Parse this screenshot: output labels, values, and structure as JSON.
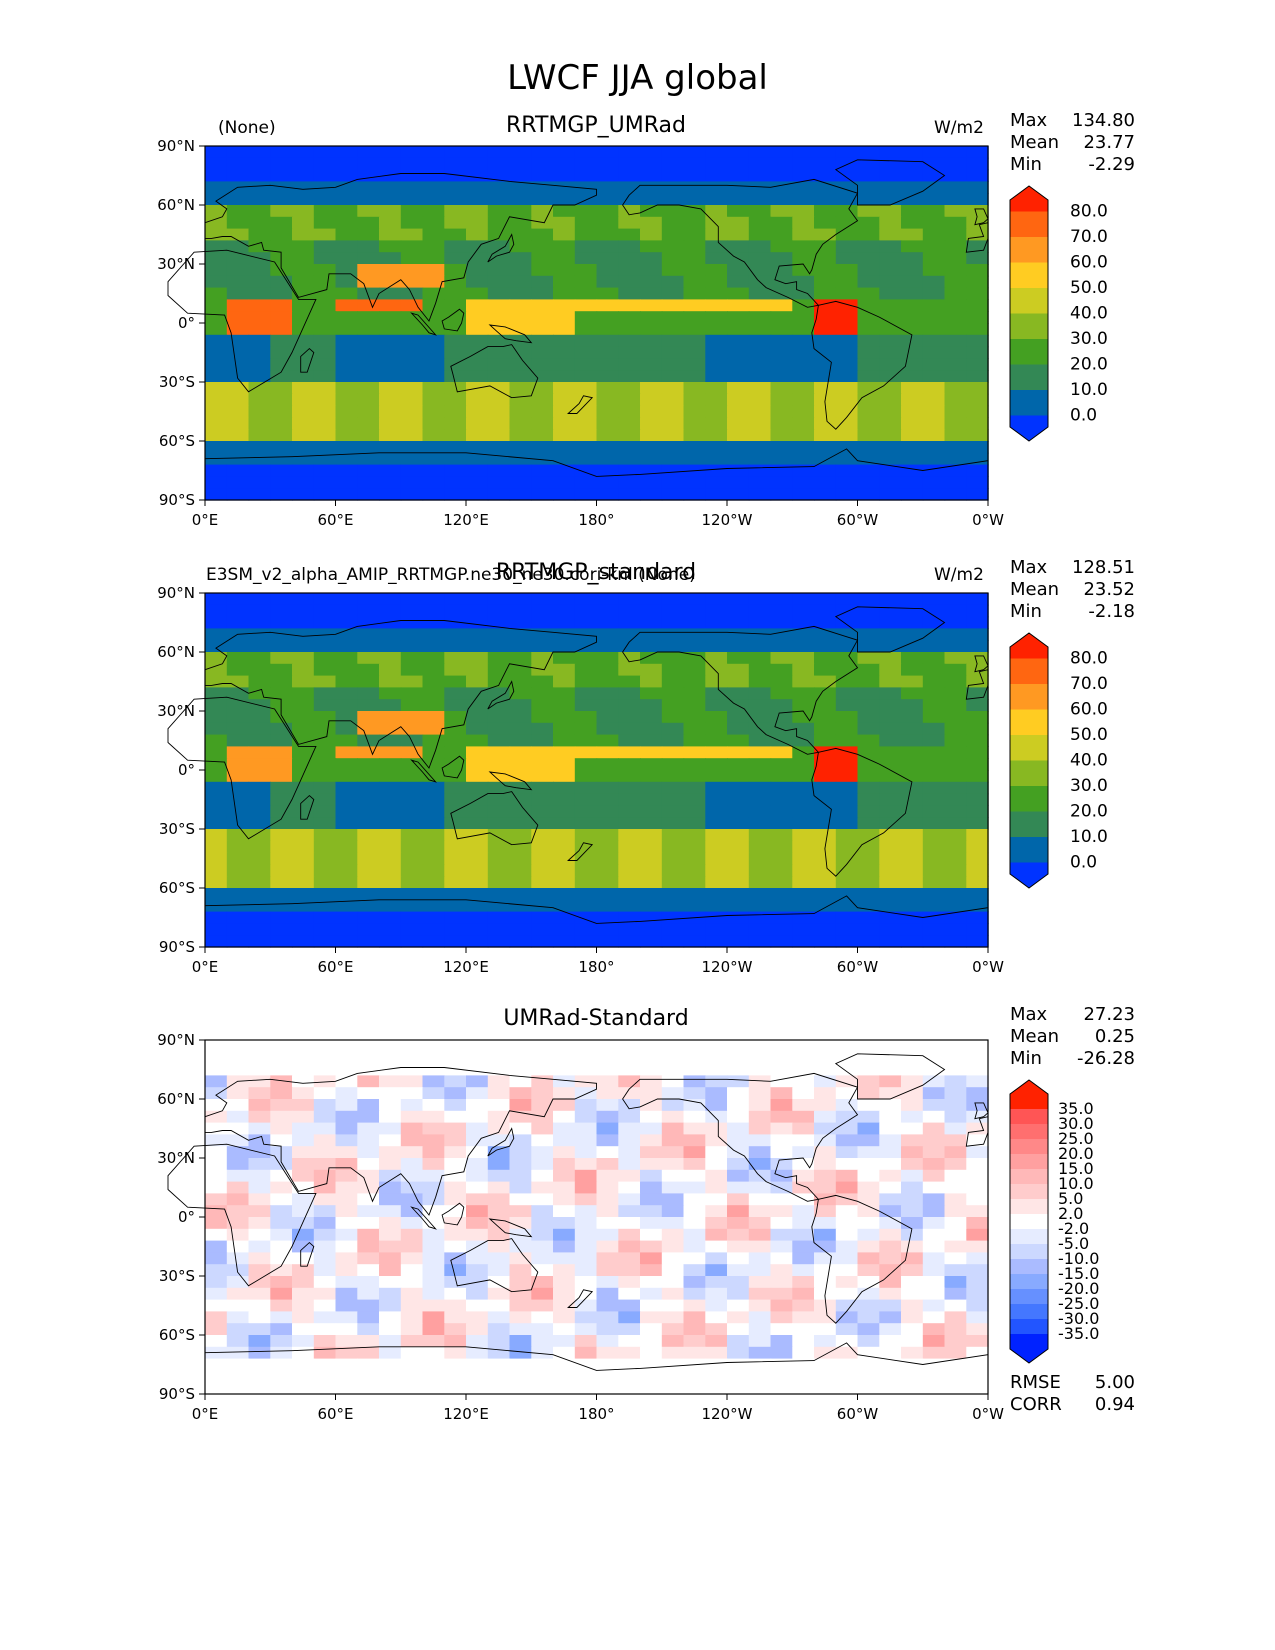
{
  "figure": {
    "title": "LWCF JJA global"
  },
  "panels": [
    {
      "title": "RRTMGP_UMRad",
      "left_label": "(None)",
      "units": "W/m2",
      "stats": {
        "max_label": "Max",
        "max": "134.80",
        "mean_label": "Mean",
        "mean": "23.77",
        "min_label": "Min",
        "min": "-2.29"
      },
      "colorbar": [
        "80.0",
        "70.0",
        "60.0",
        "50.0",
        "40.0",
        "30.0",
        "20.0",
        "10.0",
        "0.0"
      ]
    },
    {
      "title": "RRTMGP_standard",
      "left_label": "E3SM_v2_alpha_AMIP_RRTMGP.ne30_ne30.cori-knl (None)",
      "units": "W/m2",
      "stats": {
        "max_label": "Max",
        "max": "128.51",
        "mean_label": "Mean",
        "mean": "23.52",
        "min_label": "Min",
        "min": "-2.18"
      },
      "colorbar": [
        "80.0",
        "70.0",
        "60.0",
        "50.0",
        "40.0",
        "30.0",
        "20.0",
        "10.0",
        "0.0"
      ]
    },
    {
      "title": "UMRad-Standard",
      "left_label": "",
      "units": "",
      "stats": {
        "max_label": "Max",
        "max": "27.23",
        "mean_label": "Mean",
        "mean": "0.25",
        "min_label": "Min",
        "min": "-26.28"
      },
      "colorbar": [
        "35.0",
        "30.0",
        "25.0",
        "20.0",
        "15.0",
        "10.0",
        "5.0",
        "2.0",
        "-2.0",
        "-5.0",
        "-10.0",
        "-15.0",
        "-20.0",
        "-25.0",
        "-30.0",
        "-35.0"
      ],
      "rmse_label": "RMSE",
      "rmse": "5.00",
      "corr_label": "CORR",
      "corr": "0.94"
    }
  ],
  "axes": {
    "lat_ticks": [
      "90°N",
      "60°N",
      "30°N",
      "0°",
      "30°S",
      "60°S",
      "90°S"
    ],
    "lon_ticks": [
      "0°E",
      "60°E",
      "120°E",
      "180°",
      "120°W",
      "60°W",
      "0°W"
    ]
  },
  "palettes": {
    "field": [
      "#0033ff",
      "#0066aa",
      "#338855",
      "#44a022",
      "#88b822",
      "#cccc22",
      "#ffcc22",
      "#ff9922",
      "#ff6611",
      "#ff2200"
    ],
    "diff": [
      "#0022ff",
      "#2255ff",
      "#4477ff",
      "#6690ff",
      "#88aaff",
      "#aabbff",
      "#ccd8ff",
      "#e6ecff",
      "#ffffff",
      "#ffe6e6",
      "#ffcccc",
      "#ffb8b8",
      "#ffa0a0",
      "#ff8888",
      "#ff6f6f",
      "#ff5555",
      "#ff2200"
    ]
  }
}
